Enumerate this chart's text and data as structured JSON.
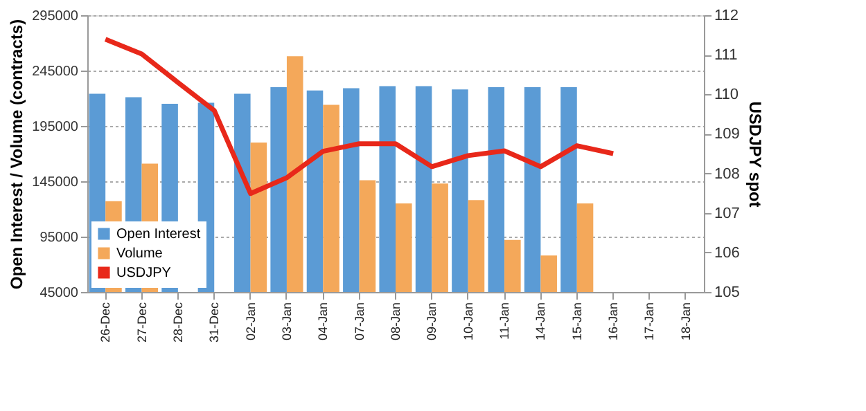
{
  "chart_data": {
    "type": "bar",
    "ylabel": "Open Interest / Volume (contracts)",
    "y2label": "USDJPY spot",
    "categories": [
      "26-Dec",
      "27-Dec",
      "28-Dec",
      "31-Dec",
      "02-Jan",
      "03-Jan",
      "04-Jan",
      "07-Jan",
      "08-Jan",
      "09-Jan",
      "10-Jan",
      "11-Jan",
      "14-Jan",
      "15-Jan",
      "16-Jan",
      "17-Jan",
      "18-Jan"
    ],
    "series": [
      {
        "name": "Open Interest",
        "type": "bar",
        "color": "#5b9bd5",
        "values": [
          224000,
          221000,
          215000,
          216000,
          224000,
          230000,
          227000,
          229000,
          231000,
          231000,
          228000,
          230000,
          230000,
          230000,
          null,
          null,
          null
        ]
      },
      {
        "name": "Volume",
        "type": "bar",
        "color": "#f4a85a",
        "values": [
          127000,
          161000,
          null,
          null,
          180000,
          258000,
          214000,
          146000,
          125000,
          143000,
          128000,
          92000,
          78000,
          125000,
          null,
          null,
          null
        ]
      },
      {
        "name": "USDJPY",
        "type": "line",
        "axis": "y2",
        "color": "#e8281a",
        "values": [
          111.39,
          111.02,
          110.3,
          109.59,
          107.49,
          107.89,
          108.56,
          108.75,
          108.75,
          108.17,
          108.45,
          108.57,
          108.17,
          108.7,
          108.5,
          null,
          null
        ]
      }
    ],
    "ylim": [
      45000,
      295000
    ],
    "yticks": [
      45000,
      95000,
      145000,
      195000,
      245000,
      295000
    ],
    "y2lim": [
      105,
      112
    ],
    "y2ticks": [
      105,
      106,
      107,
      108,
      109,
      110,
      111,
      112
    ],
    "grid": "y",
    "legend": "bottom left",
    "marker": "none",
    "line_style": "solid"
  }
}
